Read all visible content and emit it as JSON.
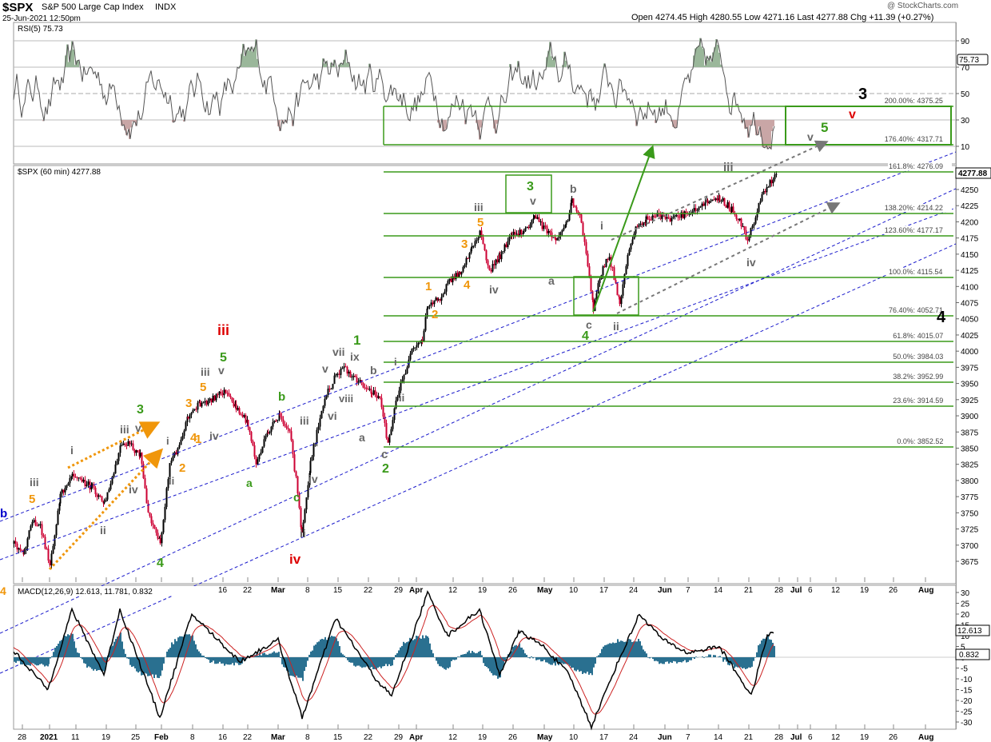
{
  "header": {
    "symbol": "$SPX",
    "name": "S&P 500 Large Cap Index",
    "exchange": "INDX",
    "date": "25-Jun-2021 12:50pm",
    "copyright": "@ StockCharts.com",
    "ohlc": "Open 4274.45   High 4280.55   Low 4271.16   Last 4277.88   Chg +11.39 (+0.27%)"
  },
  "chart_data": [
    {
      "type": "line",
      "panel": "rsi",
      "series": [
        {
          "name": "RSI(5) 75.73"
        }
      ],
      "last_value_badge": "75.73",
      "ylim": [
        0,
        100
      ],
      "yticks": [
        10,
        30,
        50,
        70,
        90
      ],
      "grid": true
    },
    {
      "type": "candlestick",
      "panel": "price",
      "series": [
        {
          "name": "$SPX (60 min) 4277.88"
        }
      ],
      "last_value_badge": "4277.88",
      "ylim": [
        3650,
        4300
      ],
      "yticks": [
        3675,
        3700,
        3725,
        3750,
        3775,
        3800,
        3825,
        3850,
        3875,
        3900,
        3925,
        3950,
        3975,
        4000,
        4025,
        4050,
        4075,
        4100,
        4125,
        4150,
        4175,
        4200,
        4225,
        4250
      ],
      "x_tick_labels": [
        "28",
        "2021",
        "11",
        "19",
        "25",
        "Feb",
        "8",
        "16",
        "22",
        "Mar",
        "8",
        "15",
        "22",
        "29",
        "Apr",
        "12",
        "19",
        "26",
        "May",
        "10",
        "17",
        "24",
        "Jun",
        "7",
        "14",
        "21",
        "28",
        "Jul",
        "6",
        "12",
        "19",
        "26",
        "Aug"
      ],
      "fib_levels": [
        {
          "label": "0.0%: 3852.52",
          "value": 3852.52
        },
        {
          "label": "23.6%: 3914.59",
          "value": 3914.59
        },
        {
          "label": "38.2%: 3952.99",
          "value": 3952.99
        },
        {
          "label": "50.0%: 3984.03",
          "value": 3984.03
        },
        {
          "label": "61.8%: 4015.07",
          "value": 4015.07
        },
        {
          "label": "76.40%: 4052.71",
          "value": 4052.71
        },
        {
          "label": "100.0%: 4115.54",
          "value": 4115.54
        },
        {
          "label": "123.60%: 4177.17",
          "value": 4177.17
        },
        {
          "label": "138.20%: 4214.22",
          "value": 4214.22
        },
        {
          "label": "161.8%: 4276.09",
          "value": 4276.09
        },
        {
          "label": "176.40%: 4317.71",
          "value": 4317.71
        },
        {
          "label": "200.00%: 4375.25",
          "value": 4375.25
        }
      ],
      "wave_labels": [
        {
          "text": "3",
          "color": "#000000"
        },
        {
          "text": "v",
          "color": "#dd0000"
        },
        {
          "text": "5",
          "color": "#3a9a1a"
        },
        {
          "text": "v",
          "color": "#666666"
        },
        {
          "text": "iii",
          "color": "#666666"
        },
        {
          "text": "3",
          "color": "#3a9a1a"
        },
        {
          "text": "v",
          "color": "#666666"
        },
        {
          "text": "b",
          "color": "#666666"
        },
        {
          "text": "iii",
          "color": "#666666"
        },
        {
          "text": "5",
          "color": "#f0960a"
        },
        {
          "text": "3",
          "color": "#f0960a"
        },
        {
          "text": "4",
          "color": "#f0960a"
        },
        {
          "text": "iv",
          "color": "#666666"
        },
        {
          "text": "a",
          "color": "#666666"
        },
        {
          "text": "i",
          "color": "#666666"
        },
        {
          "text": "iv",
          "color": "#666666"
        },
        {
          "text": "1",
          "color": "#f0960a"
        },
        {
          "text": "2",
          "color": "#f0960a"
        },
        {
          "text": "c",
          "color": "#666666"
        },
        {
          "text": "4",
          "color": "#3a9a1a"
        },
        {
          "text": "ii",
          "color": "#666666"
        },
        {
          "text": "4",
          "color": "#000000"
        },
        {
          "text": "1",
          "color": "#3a9a1a"
        },
        {
          "text": "vii",
          "color": "#666666"
        },
        {
          "text": "ix",
          "color": "#666666"
        },
        {
          "text": "v",
          "color": "#666666"
        },
        {
          "text": "viii",
          "color": "#666666"
        },
        {
          "text": "b",
          "color": "#666666"
        },
        {
          "text": "vi",
          "color": "#666666"
        },
        {
          "text": "i",
          "color": "#666666"
        },
        {
          "text": "ii",
          "color": "#666666"
        },
        {
          "text": "a",
          "color": "#666666"
        },
        {
          "text": "c",
          "color": "#666666"
        },
        {
          "text": "2",
          "color": "#3a9a1a"
        },
        {
          "text": "iii",
          "color": "#dd0000"
        },
        {
          "text": "5",
          "color": "#3a9a1a"
        },
        {
          "text": "iii",
          "color": "#666666"
        },
        {
          "text": "v",
          "color": "#666666"
        },
        {
          "text": "3",
          "color": "#f0960a"
        },
        {
          "text": "5",
          "color": "#f0960a"
        },
        {
          "text": "4",
          "color": "#f0960a"
        },
        {
          "text": "iv",
          "color": "#666666"
        },
        {
          "text": "1",
          "color": "#f0960a"
        },
        {
          "text": "2",
          "color": "#f0960a"
        },
        {
          "text": "i",
          "color": "#666666"
        },
        {
          "text": "ii",
          "color": "#666666"
        },
        {
          "text": "b",
          "color": "#3a9a1a"
        },
        {
          "text": "a",
          "color": "#3a9a1a"
        },
        {
          "text": "iii",
          "color": "#666666"
        },
        {
          "text": "iv",
          "color": "#666666"
        },
        {
          "text": "c",
          "color": "#3a9a1a"
        },
        {
          "text": "ii",
          "color": "#666666"
        },
        {
          "text": "iv",
          "color": "#dd0000"
        },
        {
          "text": "3",
          "color": "#3a9a1a"
        },
        {
          "text": "iii",
          "color": "#666666"
        },
        {
          "text": "v",
          "color": "#666666"
        },
        {
          "text": "i",
          "color": "#666666"
        },
        {
          "text": "ii",
          "color": "#666666"
        },
        {
          "text": "iv",
          "color": "#666666"
        },
        {
          "text": "iii",
          "color": "#666666"
        },
        {
          "text": "5",
          "color": "#f0960a"
        },
        {
          "text": "4",
          "color": "#3a9a1a"
        },
        {
          "text": "b",
          "color": "#0000cc"
        },
        {
          "text": "4",
          "color": "#f0960a"
        }
      ]
    },
    {
      "type": "line",
      "panel": "macd",
      "series": [
        {
          "name": "MACD(12,26,9) 12.613, 11.781, 0.832"
        }
      ],
      "last_value_badges": [
        "12.613",
        "0.832"
      ],
      "ylim": [
        -35,
        33
      ],
      "yticks": [
        30,
        25,
        20,
        15,
        10,
        5,
        0,
        -5,
        -10,
        -15,
        -20,
        -25,
        -30
      ],
      "x_tick_labels": [
        "28",
        "2021",
        "11",
        "19",
        "25",
        "Feb",
        "8",
        "16",
        "22",
        "Mar",
        "8",
        "15",
        "22",
        "29",
        "Apr",
        "12",
        "19",
        "26",
        "May",
        "10",
        "17",
        "24",
        "Jun",
        "7",
        "14",
        "21",
        "28",
        "Jul",
        "6",
        "12",
        "19",
        "26",
        "Aug"
      ]
    }
  ],
  "colors": {
    "green": "#3a9a1a",
    "orange": "#f0960a",
    "red": "#dd0000",
    "grey": "#666666",
    "blue_channel": "#1a1acc",
    "up_candle": "#000000",
    "down_candle": "#cc0033",
    "macd_hist": "#2a7090"
  }
}
